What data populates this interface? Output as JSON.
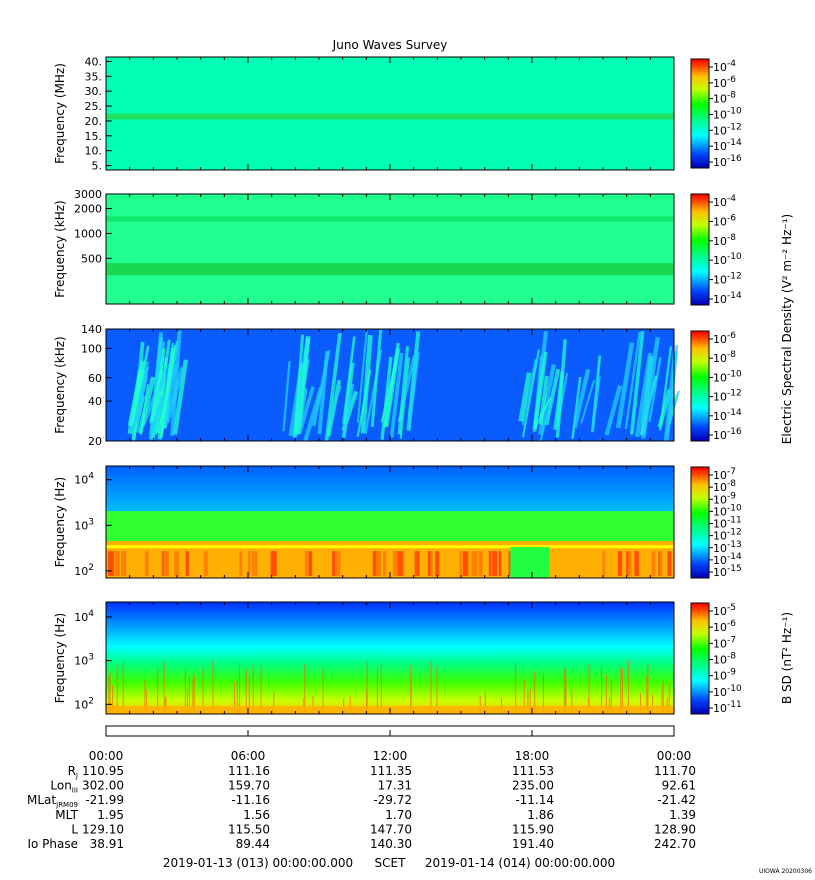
{
  "title": "Juno Waves Survey",
  "stamp": "UIOWA 20200306",
  "scet": {
    "start": "2019-01-13 (013) 00:00:00.000",
    "label": "SCET",
    "end": "2019-01-14 (014) 00:00:00.000"
  },
  "colorbar_labels": {
    "electric": "Electric Spectral Density (V² m⁻² Hz⁻¹)",
    "magnetic": "B SD (nT² Hz⁻¹)"
  },
  "chart_data": [
    {
      "type": "heatmap",
      "panel": "HF high",
      "ylabel": "Frequency (MHz)",
      "yticks": [
        "40.",
        "35.",
        "30.",
        "25.",
        "20.",
        "15.",
        "10.",
        "5."
      ],
      "ylim": [
        3.5,
        41.5
      ],
      "yscale": "linear",
      "colorbar": {
        "ticks": [
          "-4",
          "-6",
          "-8",
          "-10",
          "-12",
          "-14",
          "-16"
        ]
      },
      "features": [
        {
          "kind": "horizontal band",
          "frequency": 21.5,
          "level": "10^-12"
        }
      ]
    },
    {
      "type": "heatmap",
      "panel": "HF low",
      "ylabel": "Frequency (kHz)",
      "yticks": [
        "3000",
        "2000",
        "1000",
        "500"
      ],
      "ylim": [
        140,
        3000
      ],
      "yscale": "log",
      "colorbar": {
        "ticks": [
          "-4",
          "-6",
          "-8",
          "-10",
          "-12",
          "-14"
        ]
      },
      "features": [
        {
          "kind": "horizontal band",
          "frequency": 1500,
          "level": "10^-11"
        },
        {
          "kind": "horizontal band",
          "frequency": 370,
          "level": "10^-10"
        }
      ]
    },
    {
      "type": "heatmap",
      "panel": "LF high",
      "ylabel": "Frequency (kHz)",
      "yticks": [
        "140",
        "100",
        "60",
        "40",
        "20"
      ],
      "ylim": [
        20,
        140
      ],
      "yscale": "log",
      "colorbar": {
        "ticks": [
          "-6",
          "-8",
          "-10",
          "-12",
          "-14",
          "-16"
        ]
      },
      "features": [
        {
          "kind": "bursty emissions",
          "time": "01:00-03:00"
        },
        {
          "kind": "bursty emissions",
          "time": "07:30-13:00"
        },
        {
          "kind": "bursty emissions",
          "time": "17:30-24:00"
        }
      ]
    },
    {
      "type": "heatmap",
      "panel": "LF electric",
      "ylabel": "Frequency (Hz)",
      "yticks": [
        "10^4",
        "10^3",
        "10^2"
      ],
      "ylim": [
        70,
        20000
      ],
      "yscale": "log",
      "colorbar": {
        "ticks": [
          "-7",
          "-8",
          "-9",
          "-10",
          "-11",
          "-12",
          "-13",
          "-14",
          "-15"
        ]
      },
      "features": [
        {
          "kind": "intense low-frequency band",
          "frequency_range": [
            80,
            450
          ],
          "level": "10^-9"
        },
        {
          "kind": "reduced intensity",
          "time": "17:05-18:45"
        }
      ]
    },
    {
      "type": "heatmap",
      "panel": "LF magnetic",
      "ylabel": "Frequency (Hz)",
      "yticks": [
        "10^4",
        "10^3",
        "10^2"
      ],
      "ylim": [
        60,
        22000
      ],
      "yscale": "log",
      "colorbar": {
        "ticks": [
          "-5",
          "-6",
          "-7",
          "-8",
          "-9",
          "-10",
          "-11"
        ]
      },
      "features": [
        {
          "kind": "power-law spectrum",
          "note": "intensity increasing toward low frequency"
        }
      ]
    }
  ],
  "ephemeris": {
    "times": [
      "00:00",
      "06:00",
      "12:00",
      "18:00",
      "00:00"
    ],
    "rows": [
      {
        "label": "R",
        "sub": "J",
        "values": [
          "110.95",
          "111.16",
          "111.35",
          "111.53",
          "111.70"
        ]
      },
      {
        "label": "Lon",
        "sub": "III",
        "values": [
          "302.00",
          "159.70",
          "17.31",
          "235.00",
          "92.61"
        ]
      },
      {
        "label": "MLat",
        "sub": "JRM09",
        "values": [
          "-21.99",
          "-11.16",
          "-29.72",
          "-11.14",
          "-21.42"
        ]
      },
      {
        "label": "MLT",
        "sub": "",
        "values": [
          "1.95",
          "1.56",
          "1.70",
          "1.86",
          "1.39"
        ]
      },
      {
        "label": "L",
        "sub": "",
        "values": [
          "129.10",
          "115.50",
          "147.70",
          "115.90",
          "128.90"
        ]
      },
      {
        "label": "Io Phase",
        "sub": "",
        "values": [
          "38.91",
          "89.44",
          "140.30",
          "191.40",
          "242.70"
        ]
      }
    ]
  }
}
